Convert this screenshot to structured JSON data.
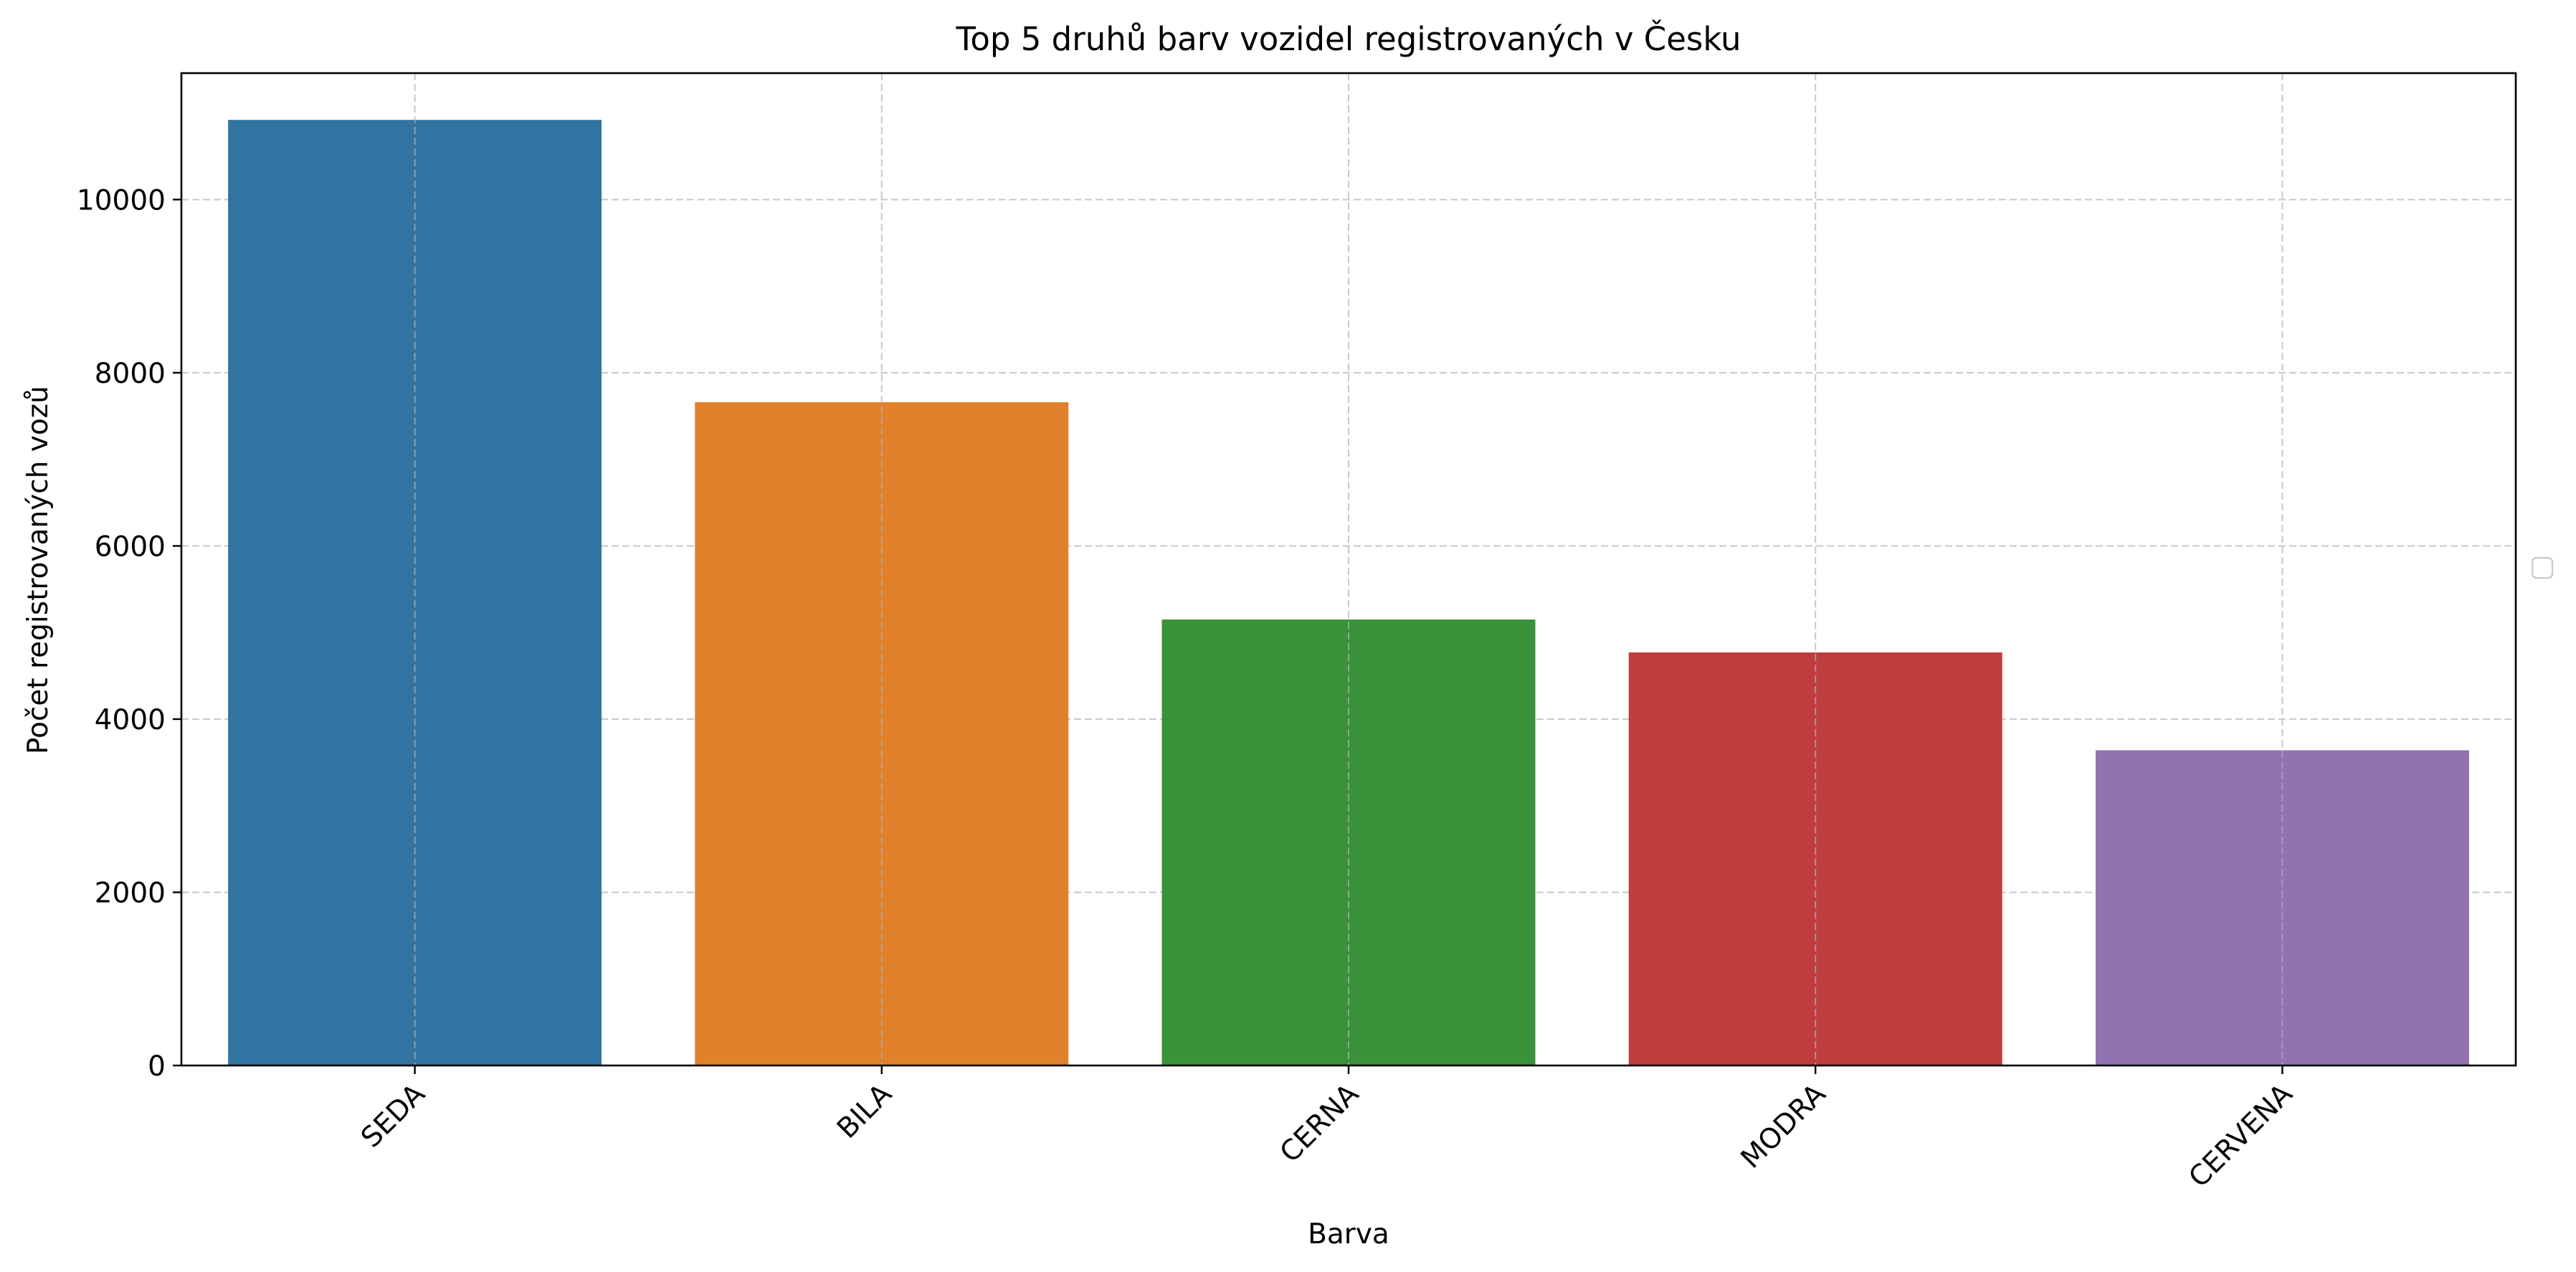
{
  "chart_data": {
    "type": "bar",
    "title": "Top 5 druhů barv vozidel registrovaných v Česku",
    "xlabel": "Barva",
    "ylabel": "Počet registrovaných vozů",
    "categories": [
      "SEDA",
      "BILA",
      "CERNA",
      "MODRA",
      "CERVENA"
    ],
    "values": [
      10920,
      7660,
      5150,
      4770,
      3640
    ],
    "ylim": [
      0,
      11460
    ],
    "yticks": [
      0,
      2000,
      4000,
      6000,
      8000,
      10000
    ],
    "ytick_labels": [
      "0",
      "2000",
      "4000",
      "6000",
      "8000",
      "10000"
    ],
    "colors": [
      "#3274a1",
      "#e1812c",
      "#3a923a",
      "#c03d3e",
      "#9372b2"
    ],
    "grid": true,
    "legend": "right, empty"
  }
}
